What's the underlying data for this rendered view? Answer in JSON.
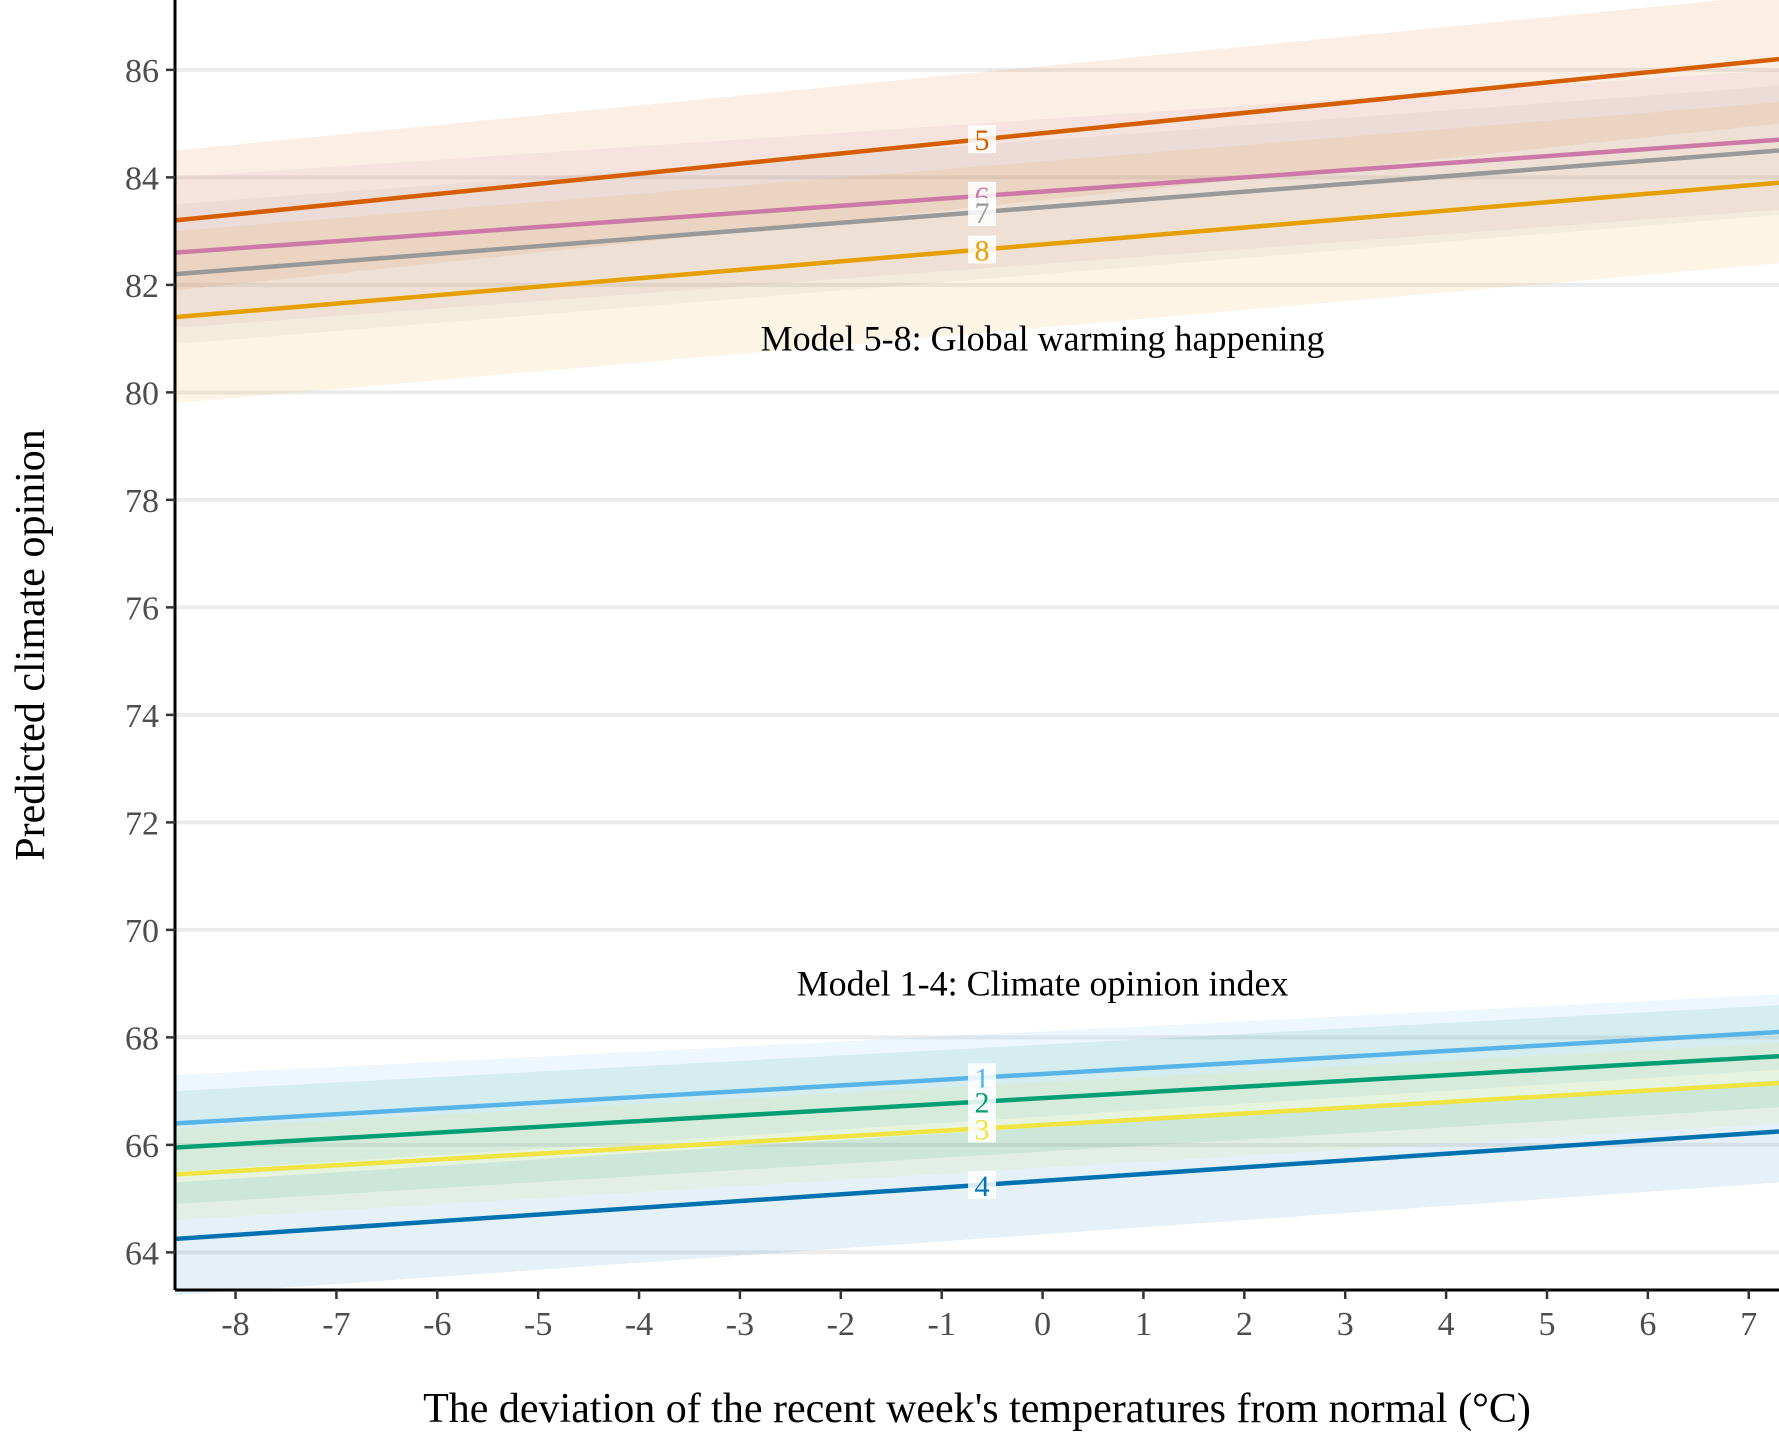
{
  "chart_data": {
    "type": "line",
    "title": "",
    "xlabel": "The deviation of the recent week's temperatures from normal (°C)",
    "ylabel": "Predicted climate opinion",
    "xlim": [
      -8.6,
      7.3
    ],
    "ylim": [
      63.3,
      87.3
    ],
    "xticks": [
      -8,
      -7,
      -6,
      -5,
      -4,
      -3,
      -2,
      -1,
      0,
      1,
      2,
      3,
      4,
      5,
      6,
      7
    ],
    "yticks": [
      64,
      66,
      68,
      70,
      72,
      74,
      76,
      78,
      80,
      82,
      84,
      86
    ],
    "grid": "horizontal major gridlines",
    "label_x": -0.6,
    "annotations": [
      {
        "text": "Model 5-8: Global warming happening",
        "x": 0.0,
        "y": 81.0
      },
      {
        "text": "Model 1-4: Climate opinion index",
        "x": 0.0,
        "y": 69.0
      }
    ],
    "series": [
      {
        "name": "5",
        "color": "#D55E00",
        "x": [
          -8.6,
          7.3
        ],
        "values": [
          83.2,
          86.2
        ],
        "ci_low": [
          81.9,
          85.0
        ],
        "ci_high": [
          84.5,
          87.4
        ]
      },
      {
        "name": "6",
        "color": "#CC79A7",
        "x": [
          -8.6,
          7.3
        ],
        "values": [
          82.6,
          84.7
        ],
        "ci_low": [
          81.2,
          83.4
        ],
        "ci_high": [
          84.0,
          86.0
        ]
      },
      {
        "name": "7",
        "color": "#999999",
        "x": [
          -8.6,
          7.3
        ],
        "values": [
          82.2,
          84.5
        ],
        "ci_low": [
          80.9,
          83.3
        ],
        "ci_high": [
          83.5,
          85.7
        ]
      },
      {
        "name": "8",
        "color": "#E69F00",
        "x": [
          -8.6,
          7.3
        ],
        "values": [
          81.4,
          83.9
        ],
        "ci_low": [
          79.8,
          82.4
        ],
        "ci_high": [
          83.0,
          85.4
        ]
      },
      {
        "name": "1",
        "color": "#56B4E9",
        "x": [
          -8.6,
          7.3
        ],
        "values": [
          66.4,
          68.1
        ],
        "ci_low": [
          65.5,
          67.4
        ],
        "ci_high": [
          67.3,
          68.8
        ]
      },
      {
        "name": "2",
        "color": "#009E73",
        "x": [
          -8.6,
          7.3
        ],
        "values": [
          65.95,
          67.65
        ],
        "ci_low": [
          64.9,
          66.7
        ],
        "ci_high": [
          67.0,
          68.6
        ]
      },
      {
        "name": "3",
        "color": "#F0E442",
        "x": [
          -8.6,
          7.3
        ],
        "values": [
          65.45,
          67.15
        ],
        "ci_low": [
          64.6,
          66.4
        ],
        "ci_high": [
          66.3,
          67.9
        ]
      },
      {
        "name": "4",
        "color": "#0072B2",
        "x": [
          -8.6,
          7.3
        ],
        "values": [
          64.25,
          66.25
        ],
        "ci_low": [
          63.2,
          65.3
        ],
        "ci_high": [
          65.3,
          67.2
        ]
      }
    ]
  }
}
